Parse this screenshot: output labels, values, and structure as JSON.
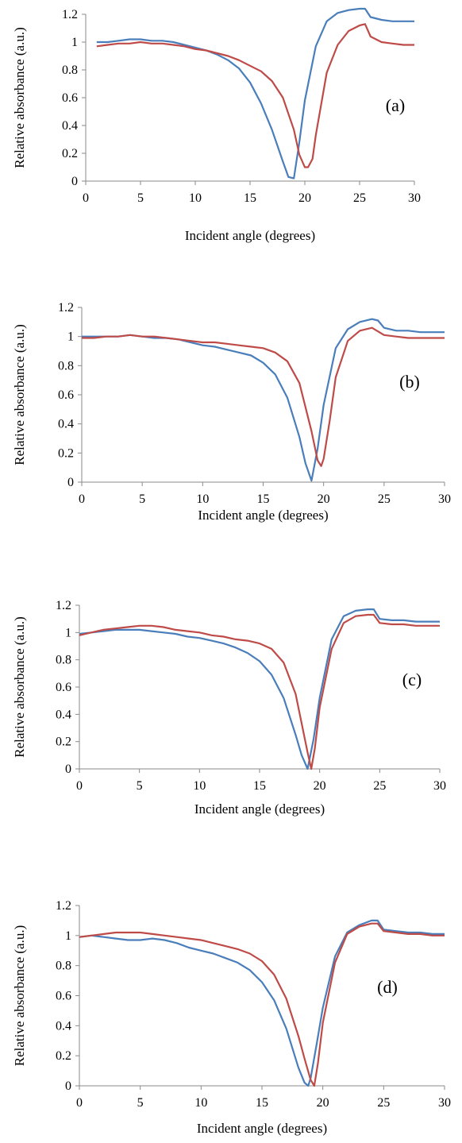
{
  "colors": {
    "blue": "#4a7ebb",
    "red": "#be4b48"
  },
  "chart_data": [
    {
      "type": "line",
      "panel_label": "(a)",
      "xlabel": "Incident angle (degrees)",
      "ylabel": "Relative absorbance (a.u.)",
      "xlim": [
        0,
        30
      ],
      "ylim": [
        0,
        1.2
      ],
      "xticks": [
        "0",
        "5",
        "10",
        "15",
        "20",
        "25",
        "30"
      ],
      "yticks": [
        "0",
        "0.2",
        "0.4",
        "0.6",
        "0.8",
        "1",
        "1.2"
      ],
      "grid": false,
      "series": [
        {
          "color": "#4a7ebb",
          "x": [
            1,
            2,
            3,
            4,
            5,
            6,
            7,
            8,
            9,
            10,
            11,
            12,
            13,
            14,
            15,
            16,
            17,
            18,
            18.5,
            19,
            19.5,
            20,
            21,
            22,
            23,
            24,
            25,
            25.5,
            26,
            27,
            28,
            29,
            30
          ],
          "y": [
            1.0,
            1.0,
            1.01,
            1.02,
            1.02,
            1.01,
            1.01,
            1.0,
            0.98,
            0.96,
            0.94,
            0.91,
            0.87,
            0.81,
            0.71,
            0.56,
            0.37,
            0.14,
            0.03,
            0.02,
            0.28,
            0.58,
            0.97,
            1.15,
            1.21,
            1.23,
            1.24,
            1.24,
            1.18,
            1.16,
            1.15,
            1.15,
            1.15
          ]
        },
        {
          "color": "#be4b48",
          "x": [
            1,
            2,
            3,
            4,
            5,
            6,
            7,
            8,
            9,
            10,
            11,
            12,
            13,
            14,
            15,
            16,
            17,
            18,
            19,
            19.5,
            20,
            20.3,
            20.7,
            21,
            22,
            23,
            24,
            25,
            25.5,
            26,
            27,
            28,
            29,
            30
          ],
          "y": [
            0.97,
            0.98,
            0.99,
            0.99,
            1.0,
            0.99,
            0.99,
            0.98,
            0.97,
            0.95,
            0.94,
            0.92,
            0.9,
            0.87,
            0.83,
            0.79,
            0.72,
            0.6,
            0.37,
            0.19,
            0.1,
            0.1,
            0.16,
            0.33,
            0.78,
            0.98,
            1.08,
            1.12,
            1.13,
            1.04,
            1.0,
            0.99,
            0.98,
            0.98
          ]
        }
      ]
    },
    {
      "type": "line",
      "panel_label": "(b)",
      "xlabel": "Incident angle (degrees)",
      "ylabel": "Relative absorbance (a.u.)",
      "xlim": [
        0,
        30
      ],
      "ylim": [
        0,
        1.2
      ],
      "xticks": [
        "0",
        "5",
        "10",
        "15",
        "20",
        "25",
        "30"
      ],
      "yticks": [
        "0",
        "0.2",
        "0.4",
        "0.6",
        "0.8",
        "1",
        "1.2"
      ],
      "grid": false,
      "series": [
        {
          "color": "#4a7ebb",
          "x": [
            0,
            1,
            2,
            3,
            4,
            5,
            6,
            7,
            8,
            9,
            10,
            11,
            12,
            13,
            14,
            15,
            16,
            17,
            18,
            18.5,
            19,
            19.5,
            20,
            21,
            22,
            23,
            24,
            24.5,
            25,
            26,
            27,
            28,
            29,
            30
          ],
          "y": [
            1.0,
            1.0,
            1.0,
            1.0,
            1.01,
            1.0,
            0.99,
            0.99,
            0.98,
            0.96,
            0.94,
            0.93,
            0.91,
            0.89,
            0.87,
            0.82,
            0.74,
            0.58,
            0.31,
            0.13,
            0.01,
            0.23,
            0.53,
            0.92,
            1.05,
            1.1,
            1.12,
            1.11,
            1.06,
            1.04,
            1.04,
            1.03,
            1.03,
            1.03
          ]
        },
        {
          "color": "#be4b48",
          "x": [
            0,
            1,
            2,
            3,
            4,
            5,
            6,
            7,
            8,
            9,
            10,
            11,
            12,
            13,
            14,
            15,
            16,
            17,
            18,
            19,
            19.5,
            19.8,
            20,
            20.5,
            21,
            22,
            23,
            24,
            25,
            26,
            27,
            28,
            29,
            30
          ],
          "y": [
            0.99,
            0.99,
            1.0,
            1.0,
            1.01,
            1.0,
            1.0,
            0.99,
            0.98,
            0.97,
            0.96,
            0.96,
            0.95,
            0.94,
            0.93,
            0.92,
            0.89,
            0.83,
            0.68,
            0.35,
            0.15,
            0.11,
            0.16,
            0.42,
            0.72,
            0.97,
            1.04,
            1.06,
            1.01,
            1.0,
            0.99,
            0.99,
            0.99,
            0.99
          ]
        }
      ]
    },
    {
      "type": "line",
      "panel_label": "(c)",
      "xlabel": "Incident angle (degrees)",
      "ylabel": "Relative absorbance (a.u.)",
      "xlim": [
        0,
        30
      ],
      "ylim": [
        0,
        1.2
      ],
      "xticks": [
        "0",
        "5",
        "10",
        "15",
        "20",
        "25",
        "30"
      ],
      "yticks": [
        "0",
        "0.2",
        "0.4",
        "0.6",
        "0.8",
        "1",
        "1.2"
      ],
      "grid": false,
      "series": [
        {
          "color": "#4a7ebb",
          "x": [
            0,
            1,
            2,
            3,
            4,
            5,
            6,
            7,
            8,
            9,
            10,
            11,
            12,
            13,
            14,
            15,
            16,
            17,
            18,
            18.5,
            19,
            19.5,
            20,
            21,
            22,
            23,
            24,
            24.5,
            25,
            26,
            27,
            28,
            29,
            30
          ],
          "y": [
            0.99,
            1.0,
            1.01,
            1.02,
            1.02,
            1.02,
            1.01,
            1.0,
            0.99,
            0.97,
            0.96,
            0.94,
            0.92,
            0.89,
            0.85,
            0.79,
            0.69,
            0.52,
            0.25,
            0.1,
            0.0,
            0.22,
            0.52,
            0.95,
            1.12,
            1.16,
            1.17,
            1.17,
            1.1,
            1.09,
            1.09,
            1.08,
            1.08,
            1.08
          ]
        },
        {
          "color": "#be4b48",
          "x": [
            0,
            1,
            2,
            3,
            4,
            5,
            6,
            7,
            8,
            9,
            10,
            11,
            12,
            13,
            14,
            15,
            16,
            17,
            18,
            19,
            19.3,
            19.6,
            20,
            21,
            22,
            23,
            24,
            24.5,
            25,
            26,
            27,
            28,
            29,
            30
          ],
          "y": [
            0.98,
            1.0,
            1.02,
            1.03,
            1.04,
            1.05,
            1.05,
            1.04,
            1.02,
            1.01,
            1.0,
            0.98,
            0.97,
            0.95,
            0.94,
            0.92,
            0.88,
            0.78,
            0.55,
            0.12,
            0.0,
            0.15,
            0.45,
            0.88,
            1.07,
            1.12,
            1.13,
            1.13,
            1.07,
            1.06,
            1.06,
            1.05,
            1.05,
            1.05
          ]
        }
      ]
    },
    {
      "type": "line",
      "panel_label": "(d)",
      "xlabel": "Incident angle (degrees)",
      "ylabel": "Relative absorbance (a.u.)",
      "xlim": [
        0,
        30
      ],
      "ylim": [
        0,
        1.2
      ],
      "xticks": [
        "0",
        "5",
        "10",
        "15",
        "20",
        "25",
        "30"
      ],
      "yticks": [
        "0",
        "0.2",
        "0.4",
        "0.6",
        "0.8",
        "1",
        "1.2"
      ],
      "grid": false,
      "series": [
        {
          "color": "#4a7ebb",
          "x": [
            0,
            1,
            2,
            3,
            4,
            5,
            6,
            7,
            8,
            9,
            10,
            11,
            12,
            13,
            14,
            15,
            16,
            17,
            18,
            18.5,
            18.8,
            19,
            19.5,
            20,
            21,
            22,
            23,
            24,
            24.5,
            25,
            26,
            27,
            28,
            29,
            30
          ],
          "y": [
            0.99,
            1.0,
            0.99,
            0.98,
            0.97,
            0.97,
            0.98,
            0.97,
            0.95,
            0.92,
            0.9,
            0.88,
            0.85,
            0.82,
            0.77,
            0.69,
            0.57,
            0.38,
            0.12,
            0.02,
            0.0,
            0.05,
            0.28,
            0.52,
            0.86,
            1.02,
            1.07,
            1.1,
            1.1,
            1.04,
            1.03,
            1.02,
            1.02,
            1.01,
            1.01
          ]
        },
        {
          "color": "#be4b48",
          "x": [
            0,
            1,
            2,
            3,
            4,
            5,
            6,
            7,
            8,
            9,
            10,
            11,
            12,
            13,
            14,
            15,
            16,
            17,
            18,
            18.5,
            19,
            19.3,
            19.6,
            20,
            21,
            22,
            23,
            24,
            24.5,
            25,
            26,
            27,
            28,
            29,
            30
          ],
          "y": [
            0.99,
            1.0,
            1.01,
            1.02,
            1.02,
            1.02,
            1.01,
            1.0,
            0.99,
            0.98,
            0.97,
            0.95,
            0.93,
            0.91,
            0.88,
            0.83,
            0.74,
            0.58,
            0.33,
            0.18,
            0.04,
            0.0,
            0.15,
            0.42,
            0.82,
            1.01,
            1.06,
            1.08,
            1.08,
            1.03,
            1.02,
            1.01,
            1.01,
            1.0,
            1.0
          ]
        }
      ]
    }
  ]
}
